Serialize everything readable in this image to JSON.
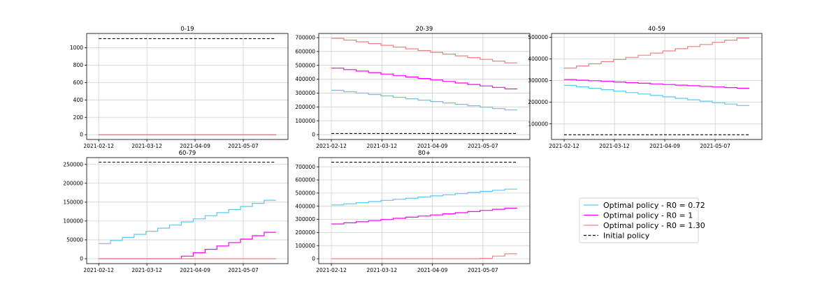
{
  "chart_data": [
    {
      "type": "line",
      "title": "0-19",
      "xlabel": "",
      "ylabel": "",
      "x_ticks": [
        "2021-02-12",
        "2021-03-12",
        "2021-04-09",
        "2021-05-07"
      ],
      "y_ticks": [
        "0",
        "200",
        "400",
        "600",
        "800",
        "1000"
      ],
      "xlim": [
        "2021-02-05",
        "2021-06-02"
      ],
      "ylim": [
        -55,
        1165
      ],
      "grid": true,
      "series": [
        {
          "name": "Optimal policy - R0 = 0.72",
          "color": "#5bc8f0",
          "style": "step",
          "x": [
            "2021-02-12",
            "2021-05-26"
          ],
          "y": [
            0,
            0
          ]
        },
        {
          "name": "Optimal policy - R0 = 1",
          "color": "#ff00ff",
          "style": "step",
          "x": [
            "2021-02-12",
            "2021-05-26"
          ],
          "y": [
            0,
            0
          ]
        },
        {
          "name": "Optimal policy - R0 = 1.30",
          "color": "#f08080",
          "style": "step",
          "x": [
            "2021-02-12",
            "2021-05-26"
          ],
          "y": [
            0,
            0
          ]
        },
        {
          "name": "Initial policy",
          "color": "#000000",
          "style": "dashed",
          "x": [
            "2021-02-12",
            "2021-05-26"
          ],
          "y": [
            1105,
            1105
          ]
        }
      ]
    },
    {
      "type": "line",
      "title": "20-39",
      "xlabel": "",
      "ylabel": "",
      "x_ticks": [
        "2021-02-12",
        "2021-03-12",
        "2021-04-09",
        "2021-05-07"
      ],
      "y_ticks": [
        "0",
        "100000",
        "200000",
        "300000",
        "400000",
        "500000",
        "600000",
        "700000"
      ],
      "xlim": [
        "2021-02-05",
        "2021-06-02"
      ],
      "ylim": [
        -35000,
        730000
      ],
      "grid": true,
      "series": [
        {
          "name": "Optimal policy - R0 = 0.72",
          "color": "#5bc8f0",
          "style": "step",
          "x": [
            "2021-02-12",
            "2021-05-26"
          ],
          "y": [
            320000,
            178000
          ]
        },
        {
          "name": "Optimal policy - R0 = 1",
          "color": "#ff00ff",
          "style": "step",
          "x": [
            "2021-02-12",
            "2021-05-26"
          ],
          "y": [
            480000,
            330000
          ]
        },
        {
          "name": "Optimal policy - R0 = 1.30",
          "color": "#f08080",
          "style": "step",
          "x": [
            "2021-02-12",
            "2021-05-26"
          ],
          "y": [
            695000,
            518000
          ]
        },
        {
          "name": "Initial policy",
          "color": "#000000",
          "style": "dashed",
          "x": [
            "2021-02-12",
            "2021-05-26"
          ],
          "y": [
            8000,
            8000
          ]
        }
      ]
    },
    {
      "type": "line",
      "title": "40-59",
      "xlabel": "",
      "ylabel": "",
      "x_ticks": [
        "2021-02-12",
        "2021-03-12",
        "2021-04-09",
        "2021-05-07"
      ],
      "y_ticks": [
        "100000",
        "200000",
        "300000",
        "400000",
        "500000"
      ],
      "xlim": [
        "2021-02-05",
        "2021-06-02"
      ],
      "ylim": [
        28000,
        518000
      ],
      "grid": true,
      "series": [
        {
          "name": "Optimal policy - R0 = 0.72",
          "color": "#5bc8f0",
          "style": "step",
          "x": [
            "2021-02-12",
            "2021-05-26"
          ],
          "y": [
            278000,
            185000
          ]
        },
        {
          "name": "Optimal policy - R0 = 1",
          "color": "#ff00ff",
          "style": "step",
          "x": [
            "2021-02-12",
            "2021-05-26"
          ],
          "y": [
            305000,
            265000
          ]
        },
        {
          "name": "Optimal policy - R0 = 1.30",
          "color": "#f08080",
          "style": "step",
          "x": [
            "2021-02-12",
            "2021-05-26"
          ],
          "y": [
            358000,
            497000
          ]
        },
        {
          "name": "Initial policy",
          "color": "#000000",
          "style": "dashed",
          "x": [
            "2021-02-12",
            "2021-05-26"
          ],
          "y": [
            50000,
            50000
          ]
        }
      ]
    },
    {
      "type": "line",
      "title": "60-79",
      "xlabel": "",
      "ylabel": "",
      "x_ticks": [
        "2021-02-12",
        "2021-03-12",
        "2021-04-09",
        "2021-05-07"
      ],
      "y_ticks": [
        "0",
        "50000",
        "100000",
        "150000",
        "200000",
        "250000"
      ],
      "xlim": [
        "2021-02-05",
        "2021-06-02"
      ],
      "ylim": [
        -13000,
        268000
      ],
      "grid": true,
      "series": [
        {
          "name": "Optimal policy - R0 = 0.72",
          "color": "#5bc8f0",
          "style": "step",
          "x": [
            "2021-02-12",
            "2021-05-26"
          ],
          "y": [
            40000,
            155000
          ]
        },
        {
          "name": "Optimal policy - R0 = 1",
          "color": "#ff00ff",
          "style": "step",
          "x": [
            "2021-02-12",
            "2021-03-30",
            "2021-05-26"
          ],
          "y": [
            0,
            0,
            70000
          ]
        },
        {
          "name": "Optimal policy - R0 = 1.30",
          "color": "#f08080",
          "style": "step",
          "x": [
            "2021-02-12",
            "2021-05-26"
          ],
          "y": [
            0,
            0
          ]
        },
        {
          "name": "Initial policy",
          "color": "#000000",
          "style": "dashed",
          "x": [
            "2021-02-12",
            "2021-05-26"
          ],
          "y": [
            256000,
            256000
          ]
        }
      ]
    },
    {
      "type": "line",
      "title": "80+",
      "xlabel": "",
      "ylabel": "",
      "x_ticks": [
        "2021-02-12",
        "2021-03-12",
        "2021-04-09",
        "2021-05-07"
      ],
      "y_ticks": [
        "0",
        "100000",
        "200000",
        "300000",
        "400000",
        "500000",
        "600000",
        "700000"
      ],
      "xlim": [
        "2021-02-05",
        "2021-06-02"
      ],
      "ylim": [
        -37000,
        770000
      ],
      "grid": true,
      "series": [
        {
          "name": "Optimal policy - R0 = 0.72",
          "color": "#5bc8f0",
          "style": "step",
          "x": [
            "2021-02-12",
            "2021-05-26"
          ],
          "y": [
            410000,
            530000
          ]
        },
        {
          "name": "Optimal policy - R0 = 1",
          "color": "#ff00ff",
          "style": "step",
          "x": [
            "2021-02-12",
            "2021-05-26"
          ],
          "y": [
            265000,
            385000
          ]
        },
        {
          "name": "Optimal policy - R0 = 1.30",
          "color": "#f08080",
          "style": "step",
          "x": [
            "2021-02-12",
            "2021-05-10",
            "2021-05-26"
          ],
          "y": [
            0,
            0,
            38000
          ]
        },
        {
          "name": "Initial policy",
          "color": "#000000",
          "style": "dashed",
          "x": [
            "2021-02-12",
            "2021-05-26"
          ],
          "y": [
            735000,
            735000
          ]
        }
      ]
    }
  ],
  "legend": {
    "placement": "bottom-right",
    "entries": [
      {
        "label": "Optimal policy - R0 = 0.72",
        "color": "#5bc8f0",
        "style": "solid"
      },
      {
        "label": "Optimal policy - R0 = 1",
        "color": "#ff00ff",
        "style": "solid"
      },
      {
        "label": "Optimal policy - R0 = 1.30",
        "color": "#f08080",
        "style": "solid"
      },
      {
        "label": "Initial policy",
        "color": "#000000",
        "style": "dashed"
      }
    ]
  }
}
